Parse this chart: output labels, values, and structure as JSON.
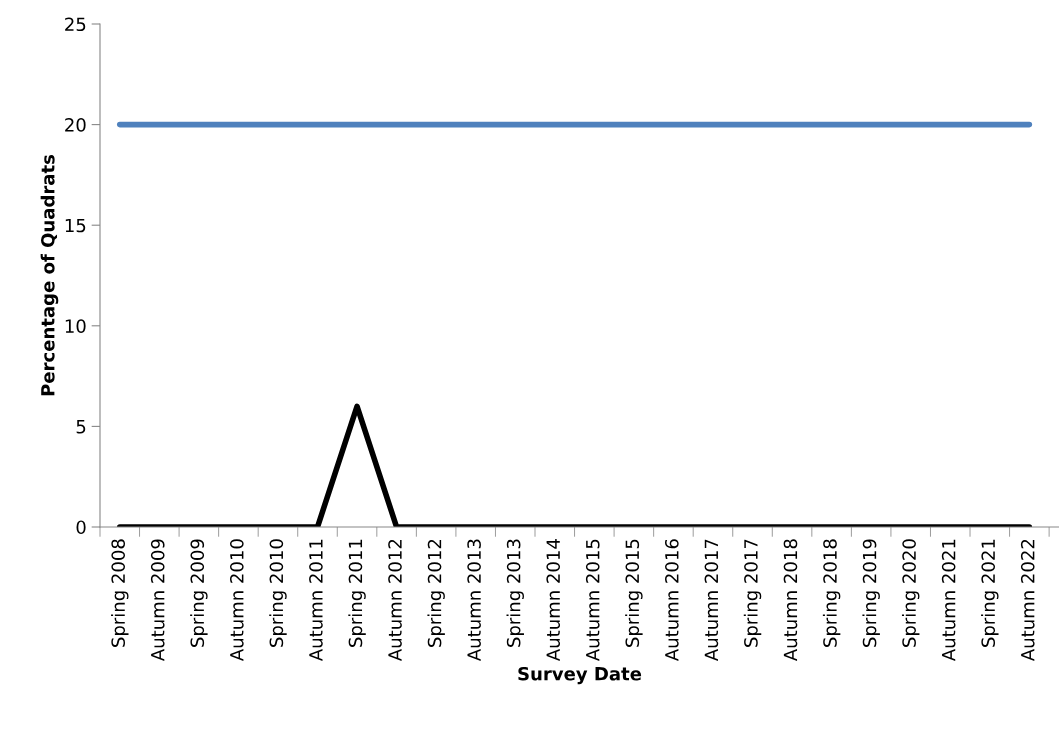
{
  "chart_data": {
    "type": "line",
    "xlabel": "Survey Date",
    "ylabel": "Percentage of Quadrats",
    "categories": [
      "Spring 2008",
      "Autumn 2009",
      "Spring 2009",
      "Autumn 2010",
      "Spring 2010",
      "Autumn 2011",
      "Spring 2011",
      "Autumn 2012",
      "Spring 2012",
      "Autumn 2013",
      "Spring 2013",
      "Autumn 2014",
      "Autumn 2015",
      "Spring 2015",
      "Autumn 2016",
      "Autumn 2017",
      "Spring 2017",
      "Autumn 2018",
      "Spring 2018",
      "Spring 2019",
      "Spring 2020",
      "Autumn 2021",
      "Spring 2021",
      "Autumn 2022"
    ],
    "series": [
      {
        "color": "#4f81bd",
        "values": [
          20,
          20,
          20,
          20,
          20,
          20,
          20,
          20,
          20,
          20,
          20,
          20,
          20,
          20,
          20,
          20,
          20,
          20,
          20,
          20,
          20,
          20,
          20,
          20
        ]
      },
      {
        "color": "#000000",
        "values": [
          0,
          0,
          0,
          0,
          0,
          0,
          6,
          0,
          0,
          0,
          0,
          0,
          0,
          0,
          0,
          0,
          0,
          0,
          0,
          0,
          0,
          0,
          0,
          0
        ]
      }
    ],
    "ylim": [
      0,
      25
    ],
    "yticks": [
      0,
      5,
      10,
      15,
      20,
      25
    ],
    "marker": "none",
    "line_style": "solid"
  }
}
